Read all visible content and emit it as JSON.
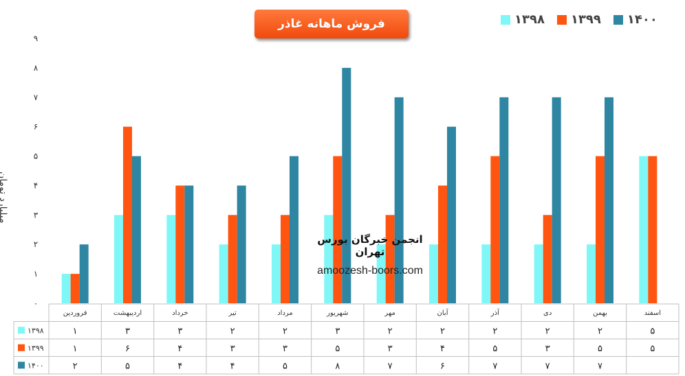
{
  "chart_data": {
    "type": "bar",
    "title": "فروش ماهانه غاذر",
    "ylabel": "میلیارد تومان",
    "ylim": [
      0,
      9
    ],
    "yticks": [
      "۰",
      "۱",
      "۲",
      "۳",
      "۴",
      "۵",
      "۶",
      "۷",
      "۸",
      "۹"
    ],
    "categories": [
      "فروردین",
      "اردیبهشت",
      "خرداد",
      "تیر",
      "مرداد",
      "شهریور",
      "مهر",
      "آبان",
      "آذر",
      "دی",
      "بهمن",
      "اسفند"
    ],
    "series": [
      {
        "name": "۱۳۹۸",
        "color": "#7ff7f7",
        "values": [
          1,
          3,
          3,
          2,
          2,
          3,
          2,
          2,
          2,
          2,
          2,
          5
        ],
        "labels": [
          "۱",
          "۳",
          "۳",
          "۲",
          "۲",
          "۳",
          "۲",
          "۲",
          "۲",
          "۲",
          "۲",
          "۵"
        ]
      },
      {
        "name": "۱۳۹۹",
        "color": "#ff5510",
        "values": [
          1,
          6,
          4,
          3,
          3,
          5,
          3,
          4,
          5,
          3,
          5,
          5
        ],
        "labels": [
          "۱",
          "۶",
          "۴",
          "۳",
          "۳",
          "۵",
          "۳",
          "۴",
          "۵",
          "۳",
          "۵",
          "۵"
        ]
      },
      {
        "name": "۱۴۰۰",
        "color": "#2e86a3",
        "values": [
          2,
          5,
          4,
          4,
          5,
          8,
          7,
          6,
          7,
          7,
          7,
          null
        ],
        "labels": [
          "۲",
          "۵",
          "۴",
          "۴",
          "۵",
          "۸",
          "۷",
          "۶",
          "۷",
          "۷",
          "۷",
          ""
        ]
      }
    ],
    "grid": false,
    "legend_position": "top-right",
    "data_table": true
  },
  "watermark": {
    "title": "انجمن خبرگان بورس تهران",
    "url": "amoozesh-boors.com"
  }
}
